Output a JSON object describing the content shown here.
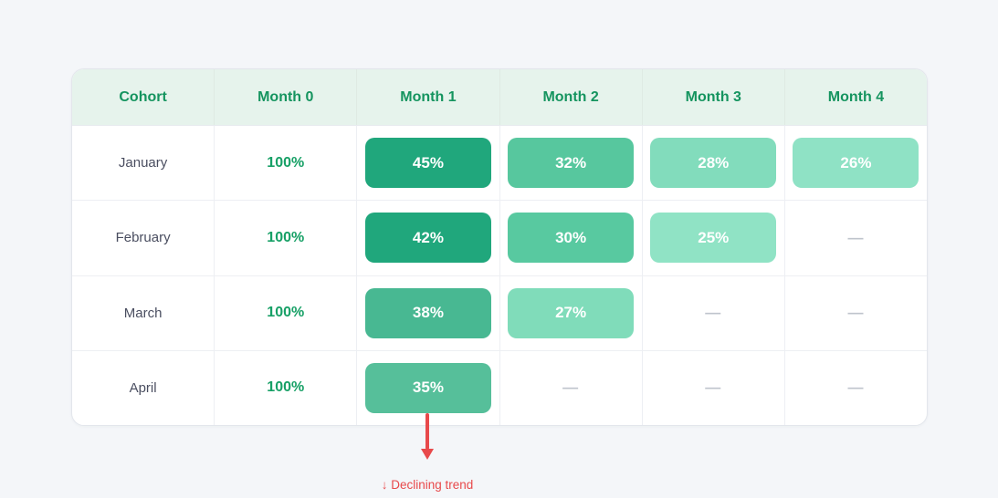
{
  "table": {
    "columns": [
      "Cohort",
      "Month 0",
      "Month 1",
      "Month 2",
      "Month 3",
      "Month 4"
    ],
    "header_bg": "#e6f3ec",
    "header_text_color": "#15945f",
    "empty_placeholder": "—",
    "rows": [
      {
        "cohort": "January",
        "month0": "100%",
        "m1": {
          "value": "45%",
          "bg": "#20a77c"
        },
        "m2": {
          "value": "32%",
          "bg": "#57c79e"
        },
        "m3": {
          "value": "28%",
          "bg": "#82dcbc"
        },
        "m4": {
          "value": "26%",
          "bg": "#8fe2c5"
        }
      },
      {
        "cohort": "February",
        "month0": "100%",
        "m1": {
          "value": "42%",
          "bg": "#20a77c"
        },
        "m2": {
          "value": "30%",
          "bg": "#58c9a0"
        },
        "m3": {
          "value": "25%",
          "bg": "#90e3c5"
        }
      },
      {
        "cohort": "March",
        "month0": "100%",
        "m1": {
          "value": "38%",
          "bg": "#48b892"
        },
        "m2": {
          "value": "27%",
          "bg": "#80dcba"
        }
      },
      {
        "cohort": "April",
        "month0": "100%",
        "m1": {
          "value": "35%",
          "bg": "#56bf9a"
        }
      }
    ]
  },
  "annotation": {
    "arrow_glyph": "↓",
    "label": "↓ Declining trend",
    "color": "#e8494b"
  },
  "chart_data": {
    "type": "heatmap",
    "title": "",
    "rows": [
      "January",
      "February",
      "March",
      "April"
    ],
    "categories": [
      "Month 0",
      "Month 1",
      "Month 2",
      "Month 3",
      "Month 4"
    ],
    "values": [
      [
        100,
        45,
        32,
        28,
        26
      ],
      [
        100,
        42,
        30,
        25,
        null
      ],
      [
        100,
        38,
        27,
        null,
        null
      ],
      [
        100,
        35,
        null,
        null,
        null
      ]
    ],
    "unit": "%",
    "legend_position": "none",
    "grid": true,
    "annotations": [
      "↓ Declining trend"
    ]
  }
}
